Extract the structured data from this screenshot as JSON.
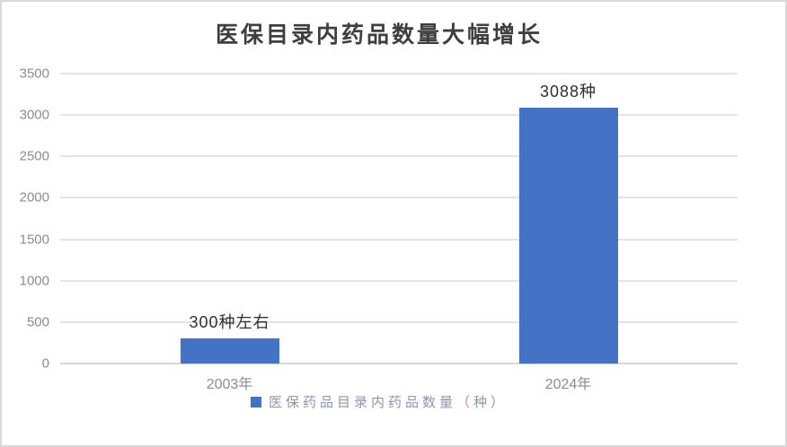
{
  "title": "医保目录内药品数量大幅增长",
  "legend": {
    "label": "医保药品目录内药品数量（种）"
  },
  "chart_data": {
    "type": "bar",
    "title": "医保目录内药品数量大幅增长",
    "categories": [
      "2003年",
      "2024年"
    ],
    "series": [
      {
        "name": "医保药品目录内药品数量（种）",
        "values": [
          300,
          3088
        ],
        "data_labels": [
          "300种左右",
          "3088种"
        ]
      }
    ],
    "xlabel": "",
    "ylabel": "",
    "ylim": [
      0,
      3500
    ],
    "ytick_step": 500,
    "ytick_labels": [
      "0",
      "500",
      "1000",
      "1500",
      "2000",
      "2500",
      "3000",
      "3500"
    ],
    "grid": true,
    "gridline_color": "#e4e4e4",
    "bar_color": "#4472c4",
    "legend_position": "bottom"
  },
  "colors": {
    "bar": "#4472c4",
    "title_text": "#3e3e3e",
    "axis_text": "#8c8c8c",
    "data_label_text": "#303030",
    "legend_text": "#8a97ab",
    "gridline": "#e4e4e4",
    "border": "#d9d9d9"
  }
}
